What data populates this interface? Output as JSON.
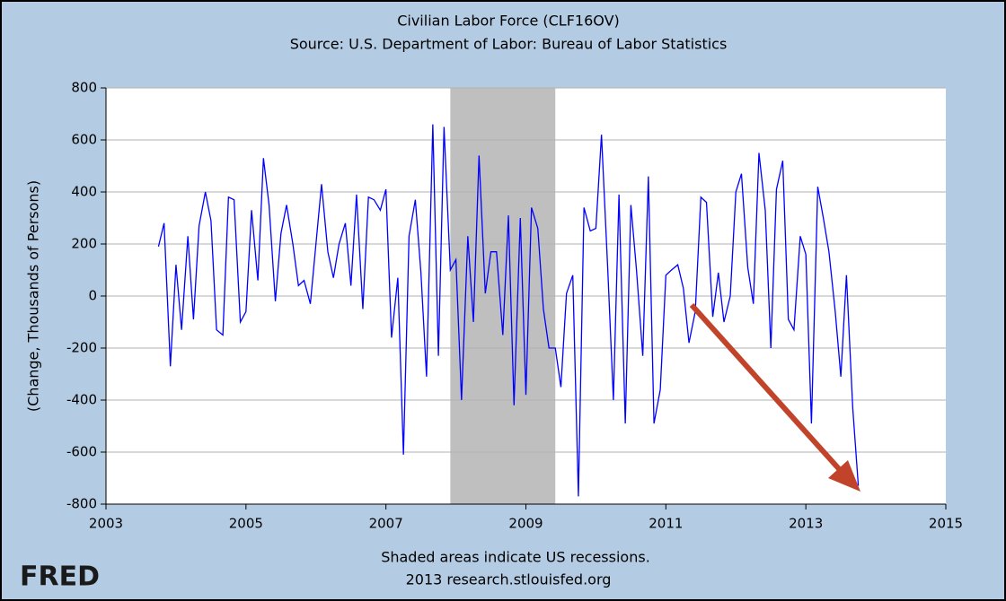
{
  "chart_data": {
    "type": "line",
    "title": "Civilian Labor Force (CLF16OV)",
    "subtitle": "Source: U.S. Department of Labor: Bureau of Labor Statistics",
    "ylabel": "(Change, Thousands of Persons)",
    "footnote": "Shaded areas indicate US recessions.",
    "credit": "2013 research.stlouisfed.org",
    "logo": "FRED",
    "xlim": [
      2003,
      2015
    ],
    "xticks": [
      2003,
      2005,
      2007,
      2009,
      2011,
      2013,
      2015
    ],
    "ylim": [
      -800,
      800
    ],
    "yticks": [
      -800,
      -600,
      -400,
      -200,
      0,
      200,
      400,
      600,
      800
    ],
    "grid": true,
    "recessions": [
      [
        2007.92,
        2009.42
      ]
    ],
    "x": [
      2003.75,
      2003.83,
      2003.92,
      2004,
      2004.08,
      2004.17,
      2004.25,
      2004.33,
      2004.42,
      2004.5,
      2004.58,
      2004.67,
      2004.75,
      2004.83,
      2004.92,
      2005,
      2005.08,
      2005.17,
      2005.25,
      2005.33,
      2005.42,
      2005.5,
      2005.58,
      2005.67,
      2005.75,
      2005.83,
      2005.92,
      2006,
      2006.08,
      2006.17,
      2006.25,
      2006.33,
      2006.42,
      2006.5,
      2006.58,
      2006.67,
      2006.75,
      2006.83,
      2006.92,
      2007,
      2007.08,
      2007.17,
      2007.25,
      2007.33,
      2007.42,
      2007.5,
      2007.58,
      2007.67,
      2007.75,
      2007.83,
      2007.92,
      2008,
      2008.08,
      2008.17,
      2008.25,
      2008.33,
      2008.42,
      2008.5,
      2008.58,
      2008.67,
      2008.75,
      2008.83,
      2008.92,
      2009,
      2009.08,
      2009.17,
      2009.25,
      2009.33,
      2009.42,
      2009.5,
      2009.58,
      2009.67,
      2009.75,
      2009.83,
      2009.92,
      2010,
      2010.08,
      2010.17,
      2010.25,
      2010.33,
      2010.42,
      2010.5,
      2010.58,
      2010.67,
      2010.75,
      2010.83,
      2010.92,
      2011,
      2011.08,
      2011.17,
      2011.25,
      2011.33,
      2011.42,
      2011.5,
      2011.58,
      2011.67,
      2011.75,
      2011.83,
      2011.92,
      2012,
      2012.08,
      2012.17,
      2012.25,
      2012.33,
      2012.42,
      2012.5,
      2012.58,
      2012.67,
      2012.75,
      2012.83,
      2012.92,
      2013,
      2013.08,
      2013.17,
      2013.25,
      2013.33,
      2013.42,
      2013.5,
      2013.58,
      2013.67,
      2013.75
    ],
    "series": [
      {
        "color": "#0000ff",
        "values": [
          190,
          280,
          -270,
          120,
          -130,
          230,
          -90,
          270,
          400,
          290,
          -130,
          -150,
          380,
          370,
          -100,
          -60,
          330,
          60,
          530,
          350,
          -20,
          240,
          350,
          200,
          40,
          60,
          -30,
          200,
          430,
          170,
          70,
          200,
          280,
          40,
          390,
          -50,
          380,
          370,
          330,
          410,
          -160,
          70,
          -610,
          230,
          370,
          90,
          -310,
          660,
          -230,
          650,
          100,
          140,
          -400,
          230,
          -100,
          540,
          10,
          170,
          170,
          -150,
          310,
          -420,
          300,
          -380,
          340,
          260,
          -50,
          -200,
          -200,
          -350,
          10,
          80,
          -770,
          340,
          250,
          260,
          620,
          100,
          -400,
          390,
          -490,
          350,
          100,
          -230,
          460,
          -490,
          -360,
          80,
          100,
          120,
          30,
          -180,
          -60,
          380,
          360,
          -80,
          90,
          -100,
          0,
          400,
          470,
          110,
          -30,
          550,
          330,
          -200,
          410,
          520,
          -90,
          -130,
          230,
          160,
          -490,
          420,
          300,
          170,
          -60,
          -310,
          80,
          -430,
          -730
        ]
      }
    ]
  }
}
